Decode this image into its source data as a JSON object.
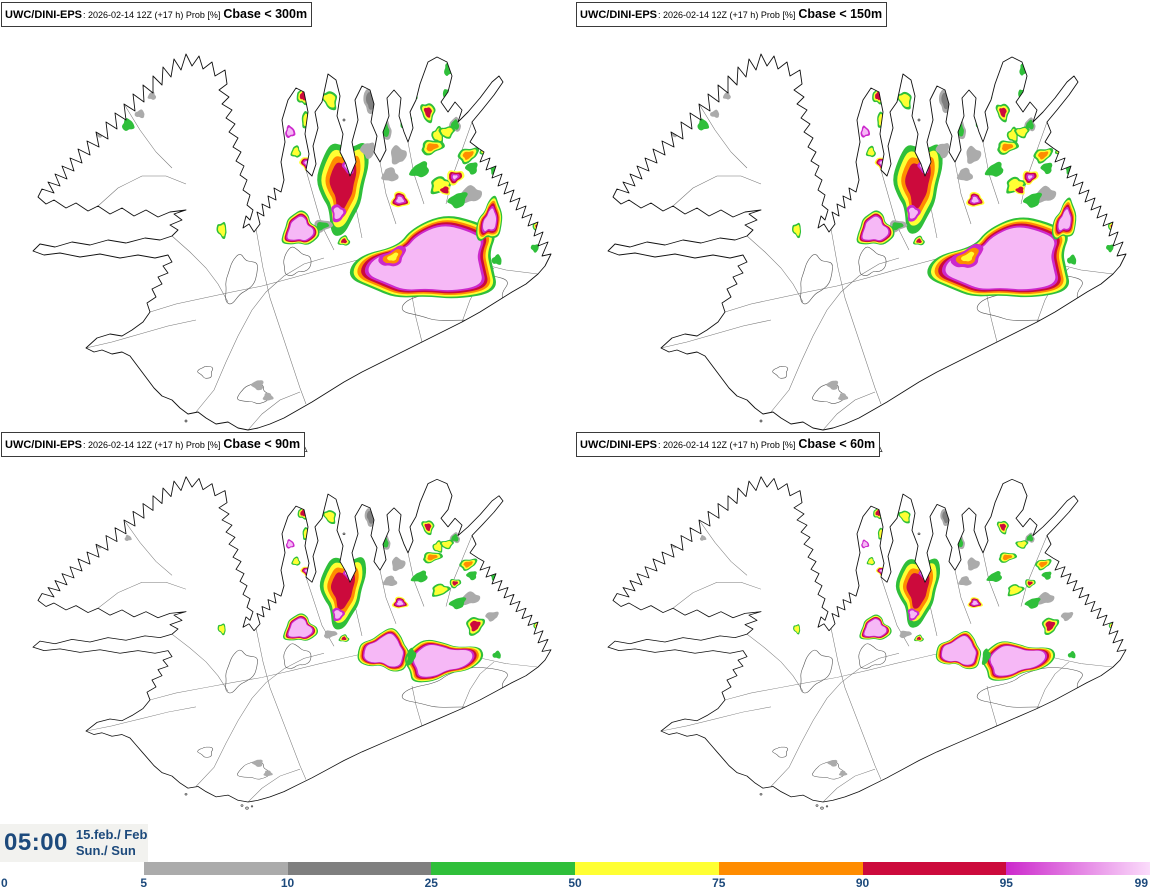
{
  "panels": [
    {
      "model": "UWC/DINI-EPS",
      "run_info": ": 2026-02-14 12Z (+17 h) Prob [%]",
      "threshold": "Cbase < 300m"
    },
    {
      "model": "UWC/DINI-EPS",
      "run_info": ": 2026-02-14 12Z (+17 h) Prob [%]",
      "threshold": "Cbase < 150m"
    },
    {
      "model": "UWC/DINI-EPS",
      "run_info": ": 2026-02-14 12Z (+17 h) Prob [%]",
      "threshold": "Cbase < 90m"
    },
    {
      "model": "UWC/DINI-EPS",
      "run_info": ": 2026-02-14 12Z (+17 h) Prob [%]",
      "threshold": "Cbase < 60m"
    }
  ],
  "footer": {
    "time": "05:00",
    "date_primary": "15.feb./ Feb",
    "date_secondary": "Sun./ Sun"
  },
  "legend": {
    "unit": "Prob [%]",
    "ticks": [
      "0",
      "5",
      "10",
      "25",
      "50",
      "75",
      "90",
      "95",
      "99"
    ],
    "segment_colors": [
      "transparent",
      "#ababab",
      "#7f7f7f",
      "#2fbf3a",
      "#ffff33",
      "#ff8c00",
      "#cc0a3c",
      "gradient"
    ],
    "gradient_end_colors": [
      "#cc29cc",
      "#fbdcfb"
    ]
  },
  "palette": {
    "gray": "#ababab",
    "darkgray": "#7f7f7f",
    "green": "#2fbf3a",
    "yellow": "#ffff33",
    "orange": "#ff8c00",
    "red": "#cc0a3c",
    "magenta": "#cc29cc",
    "pink": "#f6b8f6",
    "navy": "#1d4a7c"
  }
}
